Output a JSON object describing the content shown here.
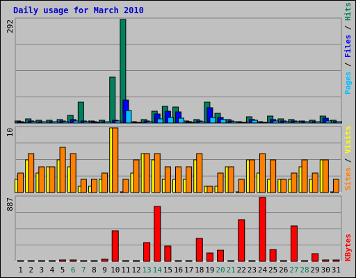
{
  "title": "Daily usage for March 2010",
  "colors": {
    "hits": "#00805c",
    "files": "#0000ff",
    "pages": "#00c0ff",
    "visits": "#ffff00",
    "sites": "#ff8000",
    "kbytes": "#ff0000",
    "weekend_label": "#00805c",
    "weekday_label": "#000000",
    "grid": "#808080"
  },
  "chart_data": [
    {
      "type": "bar",
      "panel": "hits-files-pages",
      "axis_max_label": "292",
      "ylim": [
        0,
        292
      ],
      "legend": [
        {
          "text": "Pages",
          "color": "#00c0ff"
        },
        {
          "text": " / ",
          "color": "#000000"
        },
        {
          "text": "Files",
          "color": "#0000ff"
        },
        {
          "text": " / ",
          "color": "#000000"
        },
        {
          "text": "Hits",
          "color": "#00805c"
        }
      ],
      "series": [
        {
          "name": "Hits",
          "values": [
            6,
            12,
            8,
            8,
            10,
            22,
            58,
            5,
            8,
            130,
            292,
            4,
            10,
            34,
            48,
            46,
            6,
            10,
            58,
            28,
            10,
            4,
            18,
            4,
            20,
            12,
            10,
            6,
            8,
            20,
            8
          ]
        },
        {
          "name": "Files",
          "values": [
            4,
            6,
            4,
            4,
            5,
            10,
            6,
            3,
            4,
            8,
            64,
            2,
            6,
            26,
            34,
            32,
            4,
            6,
            44,
            16,
            6,
            2,
            10,
            2,
            10,
            6,
            6,
            4,
            4,
            14,
            4
          ]
        },
        {
          "name": "Pages",
          "values": [
            2,
            4,
            3,
            3,
            3,
            6,
            4,
            2,
            3,
            6,
            36,
            2,
            4,
            12,
            16,
            14,
            2,
            4,
            16,
            10,
            4,
            2,
            8,
            2,
            6,
            4,
            4,
            3,
            3,
            6,
            3
          ]
        }
      ]
    },
    {
      "type": "bar",
      "panel": "visits-sites",
      "axis_max_label": "10",
      "ylim": [
        0,
        10
      ],
      "legend": [
        {
          "text": "Sites",
          "color": "#ff8000"
        },
        {
          "text": " / ",
          "color": "#000000"
        },
        {
          "text": "Visits",
          "color": "#ffff00"
        }
      ],
      "series": [
        {
          "name": "Visits",
          "values": [
            2,
            5,
            3,
            4,
            5,
            4,
            1,
            1,
            2,
            10,
            0,
            3,
            6,
            5,
            2,
            2,
            2,
            5,
            1,
            1,
            4,
            0,
            5,
            3,
            2,
            2,
            2,
            4,
            2,
            5,
            0
          ]
        },
        {
          "name": "Sites",
          "values": [
            3,
            6,
            4,
            4,
            7,
            6,
            2,
            2,
            3,
            10,
            2,
            5,
            6,
            6,
            4,
            4,
            4,
            6,
            1,
            3,
            4,
            2,
            5,
            6,
            5,
            2,
            3,
            5,
            3,
            5,
            2
          ]
        }
      ]
    },
    {
      "type": "bar",
      "panel": "kbytes",
      "axis_max_label": "887",
      "ylim": [
        0,
        887
      ],
      "legend": [
        {
          "text": "KBytes",
          "color": "#ff0000"
        }
      ],
      "series": [
        {
          "name": "KBytes",
          "values": [
            5,
            5,
            5,
            5,
            15,
            15,
            10,
            5,
            30,
            420,
            5,
            10,
            260,
            760,
            210,
            5,
            10,
            320,
            120,
            150,
            10,
            580,
            5,
            887,
            160,
            10,
            490,
            5,
            110,
            15,
            15
          ]
        }
      ]
    }
  ],
  "days": [
    "1",
    "2",
    "3",
    "4",
    "5",
    "6",
    "7",
    "8",
    "9",
    "10",
    "11",
    "12",
    "13",
    "14",
    "15",
    "16",
    "17",
    "18",
    "19",
    "20",
    "21",
    "22",
    "23",
    "24",
    "25",
    "26",
    "27",
    "28",
    "29",
    "30",
    "31"
  ],
  "weekend_days": [
    6,
    7,
    13,
    14,
    20,
    21,
    27,
    28
  ]
}
